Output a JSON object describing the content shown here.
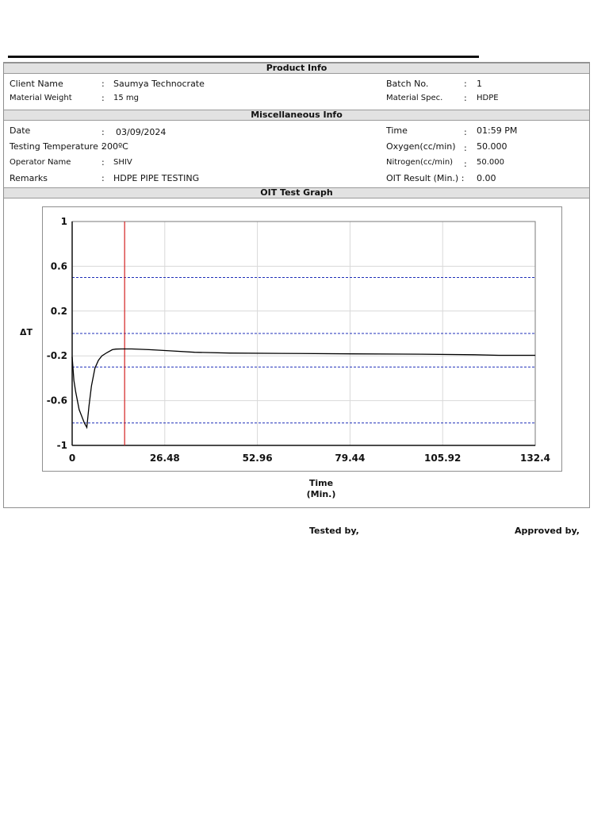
{
  "sections": {
    "product_info": "Product Info",
    "misc_info": "Miscellaneous Info",
    "graph": "OIT Test Graph"
  },
  "product": {
    "client_name_label": "Client Name",
    "client_name_value": "Saumya Technocrate",
    "material_weight_label": "Material Weight",
    "material_weight_value": "15  mg",
    "batch_no_label": "Batch No.",
    "batch_no_value": "1",
    "material_spec_label": "Material Spec.",
    "material_spec_value": "HDPE"
  },
  "misc": {
    "date_label": "Date",
    "date_value": "03/09/2024",
    "testing_temp_label": "Testing Temperature :",
    "testing_temp_value": "200ºC",
    "operator_label": "Operator Name",
    "operator_value": "SHIV",
    "remarks_label": "Remarks",
    "remarks_value": "HDPE PIPE TESTING",
    "time_label": "Time",
    "time_value": "01:59 PM",
    "oxygen_label": "Oxygen(cc/min)",
    "oxygen_value": "50.000",
    "nitrogen_label": "Nitrogen(cc/min)",
    "nitrogen_value": "50.000",
    "oit_label": "OIT Result (Min.) :",
    "oit_value": "0.00"
  },
  "chart_data": {
    "type": "line",
    "ylabel": "ΔT",
    "xlabel_line1": "Time",
    "xlabel_line2": "(Min.)",
    "xlim": [
      0,
      132.4
    ],
    "ylim": [
      -1,
      1
    ],
    "x_ticks": [
      0,
      26.48,
      52.96,
      79.44,
      105.92,
      132.4
    ],
    "x_tick_labels": [
      "0",
      "26.48",
      "52.96",
      "79.44",
      "105.92",
      "132.4"
    ],
    "y_ticks": [
      1,
      0.6,
      0.2,
      -0.2,
      -0.6,
      -1
    ],
    "y_tick_labels": [
      "1",
      "0.6",
      "0.2",
      "-0.2",
      "-0.6",
      "-1"
    ],
    "grid": true,
    "reference_lines_y": [
      0.5,
      0.0,
      -0.3,
      -0.8
    ],
    "marker_line_x": 15,
    "series": [
      {
        "color": "#000000",
        "x": [
          0,
          0.5,
          1,
          2,
          3,
          3.5,
          4.2,
          4.8,
          5.5,
          6.5,
          7.5,
          8.5,
          10,
          11.5,
          12.5,
          14,
          17,
          22,
          28,
          35,
          45,
          60,
          80,
          100,
          115,
          122,
          132.4
        ],
        "y": [
          -0.21,
          -0.42,
          -0.52,
          -0.68,
          -0.76,
          -0.8,
          -0.84,
          -0.65,
          -0.47,
          -0.31,
          -0.24,
          -0.2,
          -0.17,
          -0.145,
          -0.14,
          -0.138,
          -0.138,
          -0.145,
          -0.155,
          -0.168,
          -0.175,
          -0.178,
          -0.182,
          -0.185,
          -0.19,
          -0.195,
          -0.195
        ]
      }
    ]
  },
  "signatures": {
    "tested_by": "Tested by,",
    "approved_by": "Approved by,"
  },
  "colors": {
    "section_bg": "#e2e2e2",
    "reference_line": "#1f2fb8",
    "marker_line": "#d42020",
    "grid": "#d9d9d9"
  }
}
